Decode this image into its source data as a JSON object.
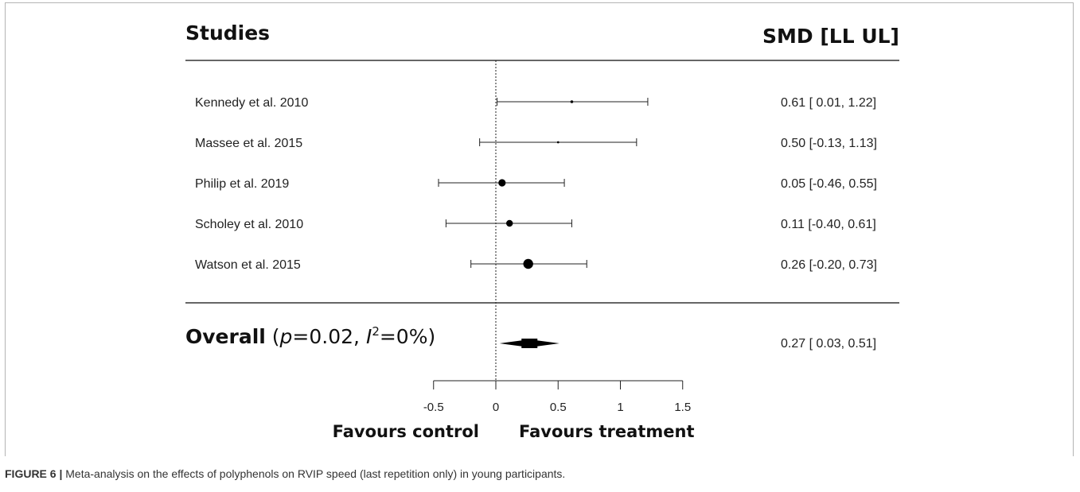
{
  "chart_data": {
    "type": "forest",
    "header": {
      "left": "Studies",
      "right": "SMD [LL UL]"
    },
    "studies": [
      {
        "label": "Kennedy et al. 2010",
        "smd": 0.61,
        "ll": 0.01,
        "ul": 1.22,
        "estimate_text": "0.61 [ 0.01, 1.22]",
        "weight": 0.1
      },
      {
        "label": "Massee et al. 2015",
        "smd": 0.5,
        "ll": -0.13,
        "ul": 1.13,
        "estimate_text": "0.50 [-0.13, 1.13]",
        "weight": 0.05
      },
      {
        "label": "Philip et al. 2019",
        "smd": 0.05,
        "ll": -0.46,
        "ul": 0.55,
        "estimate_text": "0.05 [-0.46, 0.55]",
        "weight": 0.45
      },
      {
        "label": "Scholey et al. 2010",
        "smd": 0.11,
        "ll": -0.4,
        "ul": 0.61,
        "estimate_text": "0.11 [-0.40, 0.61]",
        "weight": 0.4
      },
      {
        "label": "Watson et al. 2015",
        "smd": 0.26,
        "ll": -0.2,
        "ul": 0.73,
        "estimate_text": "0.26 [-0.20, 0.73]",
        "weight": 0.65
      }
    ],
    "overall": {
      "label_bold": "Overall",
      "label_open": " (",
      "p_symbol": "p",
      "p_text": "=0.02, ",
      "i_symbol": "I",
      "i_sup": "2",
      "i_text": "=0%)",
      "smd": 0.27,
      "ll": 0.03,
      "ul": 0.51,
      "estimate_text": "0.27 [ 0.03, 0.51]"
    },
    "x_axis": {
      "ticks": [
        -0.5,
        0,
        0.5,
        1,
        1.5
      ],
      "tick_labels": [
        "-0.5",
        "0",
        "0.5",
        "1",
        "1.5"
      ],
      "xlim": [
        -0.5,
        1.5
      ],
      "reference_line": 0
    },
    "favours": {
      "left": "Favours control",
      "right": "Favours treatment"
    }
  },
  "caption": {
    "figure_number": "FIGURE 6 |",
    "text": " Meta-analysis on the effects of polyphenols on RVIP speed (last repetition only) in young participants."
  }
}
